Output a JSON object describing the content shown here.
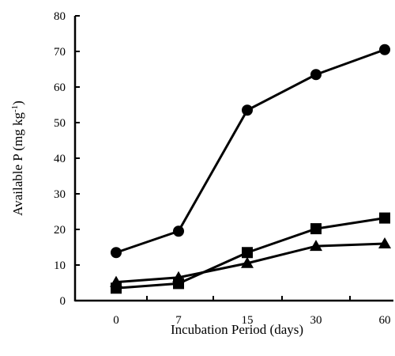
{
  "chart_data": {
    "type": "line",
    "title": "",
    "xlabel": "Incubation Period (days)",
    "ylabel_main": "Available P (mg kg",
    "ylabel_sup": "-1",
    "ylabel_close": ")",
    "categories": [
      "0",
      "7",
      "15",
      "30",
      "60"
    ],
    "ylim": [
      0,
      80
    ],
    "yticks": [
      "0",
      "10",
      "20",
      "30",
      "40",
      "50",
      "60",
      "70",
      "80"
    ],
    "series": [
      {
        "marker": "circle",
        "values": [
          13.5,
          19.5,
          53.5,
          63.5,
          70.5
        ]
      },
      {
        "marker": "square",
        "values": [
          3.5,
          4.8,
          13.5,
          20.2,
          23.2
        ]
      },
      {
        "marker": "triangle",
        "values": [
          5.2,
          6.5,
          10.5,
          15.3,
          16.0
        ]
      }
    ],
    "grid": false,
    "legend": "none"
  }
}
